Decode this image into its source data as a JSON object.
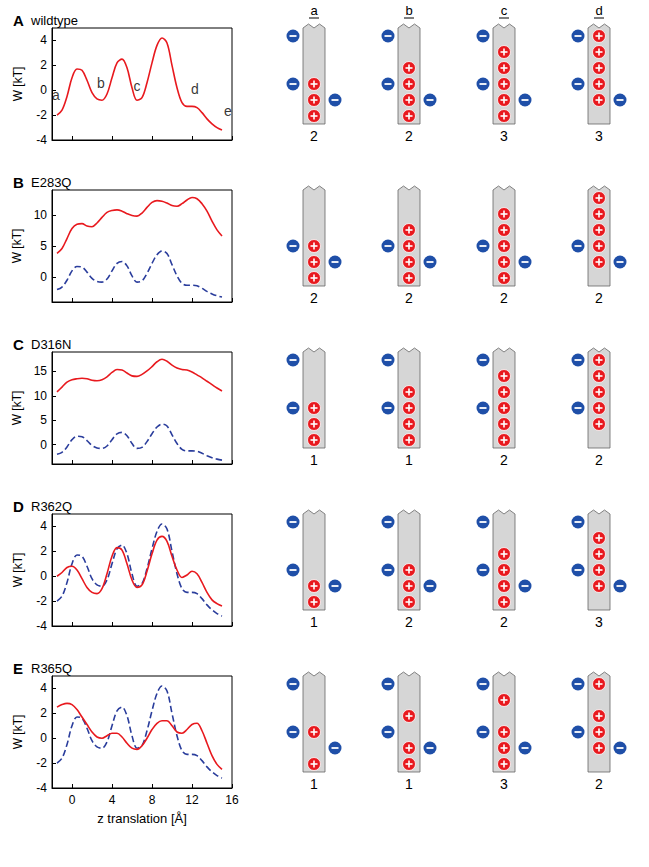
{
  "chart_data": [
    {
      "type": "line",
      "letter": "A",
      "title": "wildtype",
      "y_label": "W [kT]",
      "tick_labels": "y",
      "x": [
        -1.5,
        -1,
        -0.5,
        0,
        0.5,
        1,
        1.5,
        2,
        2.5,
        3,
        3.5,
        4,
        4.5,
        5,
        5.5,
        6,
        6.5,
        7,
        7.5,
        8,
        8.5,
        9,
        9.5,
        10,
        10.5,
        11,
        11.5,
        12,
        12.5,
        13,
        13.5,
        14,
        14.5,
        15
      ],
      "xlim": [
        -2,
        16
      ],
      "xticks": [
        0,
        4,
        8,
        12,
        16
      ],
      "ylim": [
        -4,
        5
      ],
      "yticks": [
        -4,
        -2,
        0,
        2,
        4
      ],
      "series": [
        {
          "color": "#e8191e",
          "line_style": "solid",
          "values": [
            -2.0,
            -1.6,
            -0.5,
            1.0,
            1.7,
            1.6,
            0.8,
            -0.2,
            -0.7,
            -0.8,
            -0.3,
            1.0,
            2.2,
            2.5,
            1.8,
            0.2,
            -0.8,
            -0.6,
            0.6,
            2.2,
            3.6,
            4.2,
            3.8,
            2.0,
            0.2,
            -1.0,
            -1.3,
            -1.3,
            -1.4,
            -1.8,
            -2.3,
            -2.7,
            -3.0,
            -3.2
          ]
        }
      ],
      "annotations": [
        {
          "text": "a",
          "x": -1.6,
          "y": -0.4
        },
        {
          "text": "b",
          "x": 2.9,
          "y": 0.6
        },
        {
          "text": "c",
          "x": 6.5,
          "y": 0.3
        },
        {
          "text": "d",
          "x": 12.3,
          "y": 0.1
        },
        {
          "text": "e",
          "x": 15.6,
          "y": -1.7
        }
      ]
    },
    {
      "type": "line",
      "letter": "B",
      "title": "E283Q",
      "y_label": "W [kT]",
      "tick_labels": "y",
      "x": [
        -1.5,
        -1,
        -0.5,
        0,
        0.5,
        1,
        1.5,
        2,
        2.5,
        3,
        3.5,
        4,
        4.5,
        5,
        5.5,
        6,
        6.5,
        7,
        7.5,
        8,
        8.5,
        9,
        9.5,
        10,
        10.5,
        11,
        11.5,
        12,
        12.5,
        13,
        13.5,
        14,
        14.5,
        15
      ],
      "xlim": [
        -2,
        16
      ],
      "xticks": [
        0,
        4,
        8,
        12,
        16
      ],
      "ylim": [
        -4,
        14
      ],
      "yticks": [
        0,
        5,
        10
      ],
      "series": [
        {
          "color": "#e8191e",
          "line_style": "solid",
          "values": [
            3.8,
            4.6,
            6.2,
            7.8,
            8.5,
            8.6,
            8.2,
            8.1,
            8.7,
            9.6,
            10.4,
            10.7,
            10.8,
            10.6,
            10.2,
            9.9,
            9.8,
            10.3,
            11.2,
            12.0,
            12.3,
            12.2,
            11.9,
            11.5,
            11.4,
            11.8,
            12.4,
            12.8,
            12.6,
            11.8,
            10.6,
            9.0,
            7.6,
            6.6
          ]
        },
        {
          "color": "#2a3d9c",
          "line_style": "dashed",
          "values": [
            -2.0,
            -1.6,
            -0.5,
            1.0,
            1.7,
            1.6,
            0.8,
            -0.2,
            -0.7,
            -0.8,
            -0.3,
            1.0,
            2.2,
            2.5,
            1.8,
            0.2,
            -0.8,
            -0.6,
            0.6,
            2.2,
            3.6,
            4.2,
            3.8,
            2.0,
            0.2,
            -1.0,
            -1.3,
            -1.3,
            -1.4,
            -1.8,
            -2.3,
            -2.7,
            -3.0,
            -3.2
          ]
        }
      ]
    },
    {
      "type": "line",
      "letter": "C",
      "title": "D316N",
      "y_label": "W [kT]",
      "tick_labels": "y",
      "x": [
        -1.5,
        -1,
        -0.5,
        0,
        0.5,
        1,
        1.5,
        2,
        2.5,
        3,
        3.5,
        4,
        4.5,
        5,
        5.5,
        6,
        6.5,
        7,
        7.5,
        8,
        8.5,
        9,
        9.5,
        10,
        10.5,
        11,
        11.5,
        12,
        12.5,
        13,
        13.5,
        14,
        14.5,
        15
      ],
      "xlim": [
        -2,
        16
      ],
      "xticks": [
        0,
        4,
        8,
        12,
        16
      ],
      "ylim": [
        -4,
        19
      ],
      "yticks": [
        0,
        5,
        10,
        15
      ],
      "series": [
        {
          "color": "#e8191e",
          "line_style": "solid",
          "values": [
            10.8,
            11.8,
            12.8,
            13.3,
            13.5,
            13.6,
            13.5,
            13.2,
            13.1,
            13.3,
            13.9,
            14.8,
            15.4,
            15.3,
            14.7,
            14.1,
            14.0,
            14.4,
            15.1,
            16.0,
            17.0,
            17.5,
            17.1,
            16.3,
            15.7,
            15.4,
            15.3,
            14.9,
            14.3,
            13.7,
            13.0,
            12.3,
            11.6,
            11.0
          ]
        },
        {
          "color": "#2a3d9c",
          "line_style": "dashed",
          "values": [
            -2.0,
            -1.6,
            -0.5,
            1.0,
            1.7,
            1.6,
            0.8,
            -0.2,
            -0.7,
            -0.8,
            -0.3,
            1.0,
            2.2,
            2.5,
            1.8,
            0.2,
            -0.8,
            -0.6,
            0.6,
            2.2,
            3.6,
            4.2,
            3.8,
            2.0,
            0.2,
            -1.0,
            -1.3,
            -1.3,
            -1.4,
            -1.8,
            -2.3,
            -2.7,
            -3.0,
            -3.2
          ]
        }
      ]
    },
    {
      "type": "line",
      "letter": "D",
      "title": "R362Q",
      "y_label": "W [kT]",
      "tick_labels": "y",
      "x": [
        -1.5,
        -1,
        -0.5,
        0,
        0.5,
        1,
        1.5,
        2,
        2.5,
        3,
        3.5,
        4,
        4.5,
        5,
        5.5,
        6,
        6.5,
        7,
        7.5,
        8,
        8.5,
        9,
        9.5,
        10,
        10.5,
        11,
        11.5,
        12,
        12.5,
        13,
        13.5,
        14,
        14.5,
        15
      ],
      "xlim": [
        -2,
        16
      ],
      "xticks": [
        0,
        4,
        8,
        12,
        16
      ],
      "ylim": [
        -4,
        5
      ],
      "yticks": [
        -4,
        -2,
        0,
        2,
        4
      ],
      "series": [
        {
          "color": "#e8191e",
          "line_style": "solid",
          "values": [
            0.0,
            0.3,
            0.7,
            0.8,
            0.5,
            -0.2,
            -0.9,
            -1.3,
            -1.4,
            -1.0,
            0.2,
            1.6,
            2.3,
            2.1,
            1.0,
            -0.3,
            -0.9,
            -0.7,
            0.4,
            1.8,
            2.9,
            3.2,
            2.8,
            1.6,
            0.5,
            -0.1,
            0.1,
            0.4,
            0.2,
            -0.5,
            -1.3,
            -1.9,
            -2.2,
            -2.4
          ]
        },
        {
          "color": "#2a3d9c",
          "line_style": "dashed",
          "values": [
            -2.0,
            -1.6,
            -0.5,
            1.0,
            1.7,
            1.6,
            0.8,
            -0.2,
            -0.7,
            -0.8,
            -0.3,
            1.0,
            2.2,
            2.5,
            1.8,
            0.2,
            -0.8,
            -0.6,
            0.6,
            2.2,
            3.6,
            4.2,
            3.8,
            2.0,
            0.2,
            -1.0,
            -1.3,
            -1.3,
            -1.4,
            -1.8,
            -2.3,
            -2.7,
            -3.0,
            -3.2
          ]
        }
      ]
    },
    {
      "type": "line",
      "letter": "E",
      "title": "R365Q",
      "y_label": "W [kT]",
      "x_label": "z translation [Å]",
      "x": [
        -1.5,
        -1,
        -0.5,
        0,
        0.5,
        1,
        1.5,
        2,
        2.5,
        3,
        3.5,
        4,
        4.5,
        5,
        5.5,
        6,
        6.5,
        7,
        7.5,
        8,
        8.5,
        9,
        9.5,
        10,
        10.5,
        11,
        11.5,
        12,
        12.5,
        13,
        13.5,
        14,
        14.5,
        15
      ],
      "xlim": [
        -2,
        16
      ],
      "xticks": [
        0,
        4,
        8,
        12,
        16
      ],
      "ylim": [
        -4,
        5
      ],
      "yticks": [
        -4,
        -2,
        0,
        2,
        4
      ],
      "series": [
        {
          "color": "#e8191e",
          "line_style": "solid",
          "values": [
            2.5,
            2.7,
            2.8,
            2.7,
            2.3,
            1.7,
            1.1,
            0.5,
            0.1,
            0.0,
            0.2,
            0.4,
            0.4,
            0.1,
            -0.4,
            -0.8,
            -0.9,
            -0.6,
            0.0,
            0.7,
            1.2,
            1.4,
            1.4,
            1.0,
            0.5,
            0.4,
            0.7,
            1.1,
            1.2,
            0.6,
            -0.4,
            -1.4,
            -2.1,
            -2.5
          ]
        },
        {
          "color": "#2a3d9c",
          "line_style": "dashed",
          "values": [
            -2.0,
            -1.6,
            -0.5,
            1.0,
            1.7,
            1.6,
            0.8,
            -0.2,
            -0.7,
            -0.8,
            -0.3,
            1.0,
            2.2,
            2.5,
            1.8,
            0.2,
            -0.8,
            -0.6,
            0.6,
            2.2,
            3.6,
            4.2,
            3.8,
            2.0,
            0.2,
            -1.0,
            -1.3,
            -1.3,
            -1.4,
            -1.8,
            -2.3,
            -2.7,
            -3.0,
            -3.2
          ]
        }
      ]
    }
  ],
  "diagram": {
    "columns": [
      "a",
      "b",
      "c",
      "d"
    ],
    "rows": [
      {
        "minus": [
          {
            "side": "left",
            "level": 0
          },
          {
            "side": "left",
            "level": 3
          },
          {
            "side": "right",
            "level": 4
          }
        ],
        "cells": [
          {
            "plus": [
              3,
              4,
              5
            ],
            "count": 2
          },
          {
            "plus": [
              2,
              3,
              4,
              5
            ],
            "count": 2
          },
          {
            "plus": [
              1,
              2,
              3,
              4,
              5
            ],
            "count": 3
          },
          {
            "plus": [
              0,
              1,
              2,
              3,
              4
            ],
            "count": 3
          }
        ]
      },
      {
        "minus": [
          {
            "side": "left",
            "level": 3
          },
          {
            "side": "right",
            "level": 4
          }
        ],
        "cells": [
          {
            "plus": [
              3,
              4,
              5
            ],
            "count": 2
          },
          {
            "plus": [
              2,
              3,
              4,
              5
            ],
            "count": 2
          },
          {
            "plus": [
              1,
              2,
              3,
              4,
              5
            ],
            "count": 2
          },
          {
            "plus": [
              0,
              1,
              2,
              3,
              4
            ],
            "count": 2
          }
        ]
      },
      {
        "minus": [
          {
            "side": "left",
            "level": 0
          },
          {
            "side": "left",
            "level": 3
          }
        ],
        "cells": [
          {
            "plus": [
              3,
              4,
              5
            ],
            "count": 1
          },
          {
            "plus": [
              2,
              3,
              4,
              5
            ],
            "count": 1
          },
          {
            "plus": [
              1,
              2,
              3,
              4,
              5
            ],
            "count": 2
          },
          {
            "plus": [
              0,
              1,
              2,
              3,
              4
            ],
            "count": 2
          }
        ]
      },
      {
        "minus": [
          {
            "side": "left",
            "level": 0
          },
          {
            "side": "left",
            "level": 3
          },
          {
            "side": "right",
            "level": 4
          }
        ],
        "cells": [
          {
            "plus": [
              4,
              5
            ],
            "count": 1
          },
          {
            "plus": [
              3,
              4,
              5
            ],
            "count": 2
          },
          {
            "plus": [
              2,
              3,
              4,
              5
            ],
            "count": 2
          },
          {
            "plus": [
              1,
              2,
              3,
              4
            ],
            "count": 3
          }
        ]
      },
      {
        "minus": [
          {
            "side": "left",
            "level": 0
          },
          {
            "side": "left",
            "level": 3
          },
          {
            "side": "right",
            "level": 4
          }
        ],
        "cells": [
          {
            "plus": [
              3,
              5
            ],
            "count": 1
          },
          {
            "plus": [
              2,
              4,
              5
            ],
            "count": 1
          },
          {
            "plus": [
              1,
              3,
              4,
              5
            ],
            "count": 3
          },
          {
            "plus": [
              0,
              2,
              3,
              4
            ],
            "count": 2
          }
        ]
      }
    ]
  }
}
